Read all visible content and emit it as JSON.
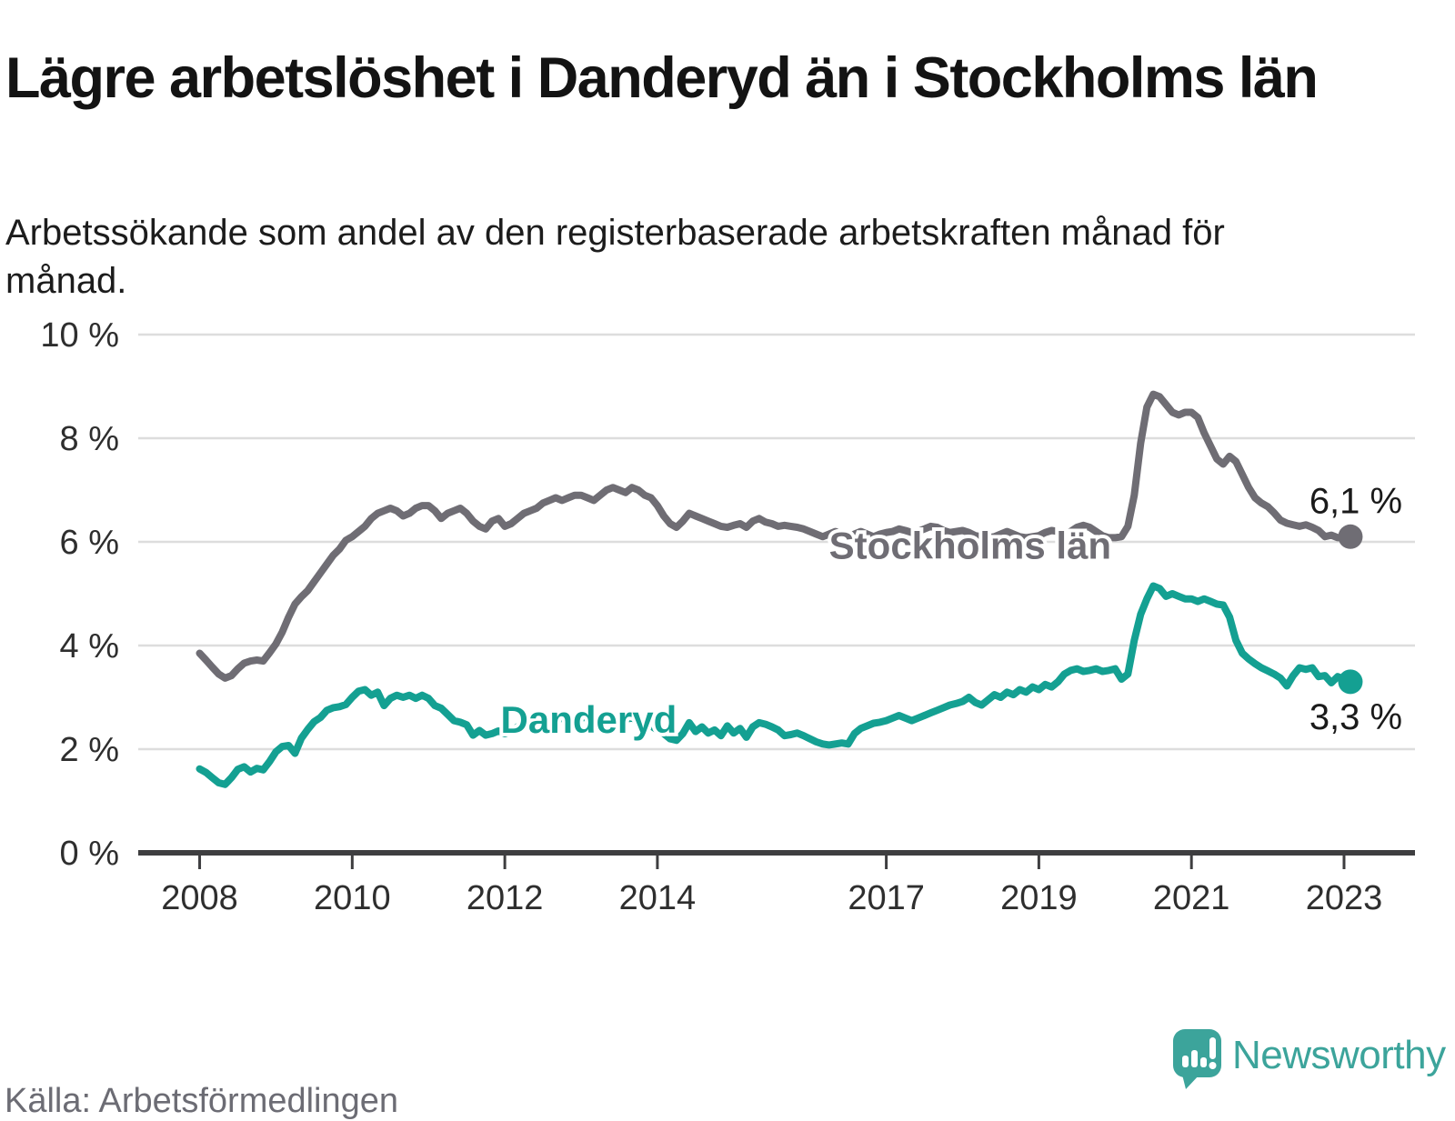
{
  "title": "Lägre arbetslöshet i Danderyd än i Stockholms län",
  "subtitle": "Arbetssökande som andel av den registerbaserade arbetskraften månad för månad.",
  "source": "Källa: Arbetsförmedlingen",
  "logo": {
    "text": "Newsworthy",
    "color": "#3CA49B"
  },
  "colors": {
    "stockholm_line": "#6F6D74",
    "danderyd_line": "#14A092",
    "axis": "#3E3E40",
    "gridline": "#DDDDDD",
    "tick_text": "#2E2E2E",
    "value_label_text": "#1A1A1A"
  },
  "chart_data": {
    "type": "line",
    "title": "Lägre arbetslöshet i Danderyd än i Stockholms län",
    "xlabel": "",
    "ylabel": "Arbetssökande som andel av den registerbaserade arbetskraften",
    "x_unit": "year-month",
    "x_start": 2008,
    "x_step": 0.0833333,
    "xlim": [
      2007.195,
      2023.93
    ],
    "ylim": [
      0,
      10
    ],
    "grid": "horizontal",
    "y_ticks": [
      {
        "v": 10,
        "label": "10 %"
      },
      {
        "v": 8,
        "label": "8 %"
      },
      {
        "v": 6,
        "label": "6 %"
      },
      {
        "v": 4,
        "label": "4 %"
      },
      {
        "v": 2,
        "label": "2 %"
      },
      {
        "v": 0,
        "label": "0 %"
      }
    ],
    "x_ticks": [
      {
        "v": 2008,
        "label": "2008"
      },
      {
        "v": 2010,
        "label": "2010"
      },
      {
        "v": 2012,
        "label": "2012"
      },
      {
        "v": 2014,
        "label": "2014"
      },
      {
        "v": 2017,
        "label": "2017"
      },
      {
        "v": 2019,
        "label": "2019"
      },
      {
        "v": 2021,
        "label": "2021"
      },
      {
        "v": 2023,
        "label": "2023"
      }
    ],
    "series": [
      {
        "name": "Stockholms län",
        "color": "#6F6D74",
        "end_label": "6,1 %",
        "end_label_side": "above",
        "label_anchor": {
          "x": 2018.1,
          "y": 5.92
        },
        "values": [
          3.85,
          3.72,
          3.58,
          3.45,
          3.37,
          3.42,
          3.55,
          3.66,
          3.7,
          3.72,
          3.7,
          3.86,
          4.03,
          4.26,
          4.55,
          4.8,
          4.94,
          5.06,
          5.23,
          5.4,
          5.57,
          5.74,
          5.86,
          6.03,
          6.1,
          6.2,
          6.3,
          6.45,
          6.55,
          6.6,
          6.65,
          6.6,
          6.5,
          6.55,
          6.65,
          6.7,
          6.7,
          6.6,
          6.45,
          6.55,
          6.6,
          6.65,
          6.55,
          6.4,
          6.3,
          6.25,
          6.4,
          6.45,
          6.3,
          6.35,
          6.45,
          6.55,
          6.6,
          6.65,
          6.75,
          6.8,
          6.85,
          6.8,
          6.85,
          6.9,
          6.9,
          6.85,
          6.8,
          6.9,
          7.0,
          7.05,
          7.0,
          6.95,
          7.05,
          7.0,
          6.9,
          6.85,
          6.7,
          6.5,
          6.35,
          6.28,
          6.4,
          6.55,
          6.5,
          6.45,
          6.4,
          6.35,
          6.3,
          6.28,
          6.32,
          6.35,
          6.28,
          6.4,
          6.45,
          6.38,
          6.35,
          6.3,
          6.32,
          6.3,
          6.28,
          6.25,
          6.2,
          6.15,
          6.1,
          6.15,
          6.2,
          6.15,
          6.1,
          6.15,
          6.2,
          6.15,
          6.1,
          6.15,
          6.18,
          6.2,
          6.25,
          6.22,
          6.18,
          6.2,
          6.25,
          6.3,
          6.28,
          6.22,
          6.18,
          6.2,
          6.22,
          6.18,
          6.12,
          6.1,
          6.08,
          6.1,
          6.15,
          6.2,
          6.15,
          6.1,
          6.08,
          6.1,
          6.12,
          6.18,
          6.22,
          6.2,
          6.15,
          6.2,
          6.28,
          6.32,
          6.28,
          6.2,
          6.12,
          6.08,
          6.08,
          6.1,
          6.3,
          6.9,
          7.9,
          8.6,
          8.85,
          8.8,
          8.65,
          8.5,
          8.45,
          8.5,
          8.5,
          8.4,
          8.1,
          7.85,
          7.6,
          7.5,
          7.65,
          7.55,
          7.3,
          7.05,
          6.85,
          6.75,
          6.68,
          6.56,
          6.42,
          6.36,
          6.33,
          6.3,
          6.33,
          6.28,
          6.22,
          6.1,
          6.13,
          6.08,
          6.08,
          6.1
        ]
      },
      {
        "name": "Danderyd",
        "color": "#14A092",
        "end_label": "3,3 %",
        "end_label_side": "below",
        "label_anchor": {
          "x": 2013.1,
          "y": 2.56
        },
        "values": [
          1.62,
          1.55,
          1.45,
          1.35,
          1.32,
          1.45,
          1.61,
          1.66,
          1.56,
          1.63,
          1.6,
          1.76,
          1.95,
          2.05,
          2.07,
          1.92,
          2.21,
          2.38,
          2.53,
          2.61,
          2.75,
          2.8,
          2.82,
          2.86,
          3.0,
          3.12,
          3.15,
          3.04,
          3.1,
          2.84,
          2.98,
          3.04,
          3.0,
          3.04,
          2.98,
          3.04,
          2.98,
          2.84,
          2.79,
          2.67,
          2.55,
          2.52,
          2.47,
          2.27,
          2.36,
          2.27,
          2.3,
          2.35,
          2.3,
          2.34,
          2.43,
          2.5,
          2.55,
          2.6,
          2.65,
          2.6,
          2.55,
          2.6,
          2.62,
          2.58,
          2.6,
          2.62,
          2.6,
          2.63,
          2.6,
          2.62,
          2.6,
          2.58,
          2.6,
          2.55,
          2.5,
          2.45,
          2.37,
          2.3,
          2.2,
          2.17,
          2.3,
          2.51,
          2.34,
          2.43,
          2.31,
          2.37,
          2.26,
          2.45,
          2.31,
          2.4,
          2.23,
          2.43,
          2.51,
          2.48,
          2.43,
          2.37,
          2.26,
          2.28,
          2.31,
          2.26,
          2.2,
          2.14,
          2.1,
          2.08,
          2.1,
          2.12,
          2.1,
          2.3,
          2.4,
          2.45,
          2.5,
          2.52,
          2.55,
          2.6,
          2.65,
          2.6,
          2.55,
          2.6,
          2.65,
          2.7,
          2.75,
          2.8,
          2.85,
          2.88,
          2.92,
          3.0,
          2.9,
          2.85,
          2.95,
          3.05,
          3.0,
          3.1,
          3.05,
          3.15,
          3.1,
          3.2,
          3.15,
          3.25,
          3.2,
          3.3,
          3.45,
          3.52,
          3.55,
          3.5,
          3.52,
          3.55,
          3.5,
          3.52,
          3.55,
          3.35,
          3.45,
          4.1,
          4.6,
          4.9,
          5.15,
          5.1,
          4.95,
          5.0,
          4.95,
          4.9,
          4.9,
          4.85,
          4.9,
          4.85,
          4.8,
          4.78,
          4.55,
          4.1,
          3.85,
          3.74,
          3.65,
          3.57,
          3.51,
          3.45,
          3.37,
          3.22,
          3.42,
          3.57,
          3.54,
          3.57,
          3.4,
          3.42,
          3.28,
          3.4,
          3.35,
          3.3
        ]
      }
    ]
  }
}
